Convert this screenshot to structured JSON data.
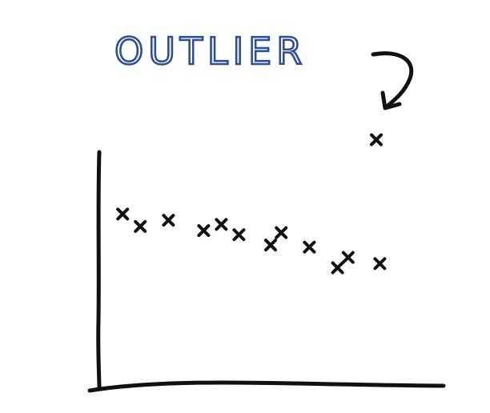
{
  "label": {
    "text": "OUTLIER",
    "color": "#2e4f93"
  },
  "ink_color": "#111111",
  "chart_data": {
    "type": "scatter",
    "xlim": [
      0,
      10
    ],
    "ylim": [
      0,
      10
    ],
    "grid": false,
    "ticks": false,
    "annotation": {
      "text": "OUTLIER",
      "target": "outlier",
      "arrow": true
    },
    "points": [
      {
        "x": 0.3,
        "y": 6.3,
        "kind": "cluster"
      },
      {
        "x": 0.8,
        "y": 5.7,
        "kind": "cluster"
      },
      {
        "x": 1.6,
        "y": 6.0,
        "kind": "cluster"
      },
      {
        "x": 2.6,
        "y": 5.5,
        "kind": "cluster"
      },
      {
        "x": 3.1,
        "y": 5.8,
        "kind": "cluster"
      },
      {
        "x": 3.6,
        "y": 5.3,
        "kind": "cluster"
      },
      {
        "x": 4.5,
        "y": 4.8,
        "kind": "cluster"
      },
      {
        "x": 4.8,
        "y": 5.4,
        "kind": "cluster"
      },
      {
        "x": 5.6,
        "y": 4.7,
        "kind": "cluster"
      },
      {
        "x": 6.4,
        "y": 3.7,
        "kind": "cluster"
      },
      {
        "x": 6.7,
        "y": 4.2,
        "kind": "cluster"
      },
      {
        "x": 7.6,
        "y": 3.9,
        "kind": "cluster"
      },
      {
        "x": 7.5,
        "y": 9.9,
        "kind": "outlier"
      }
    ]
  }
}
